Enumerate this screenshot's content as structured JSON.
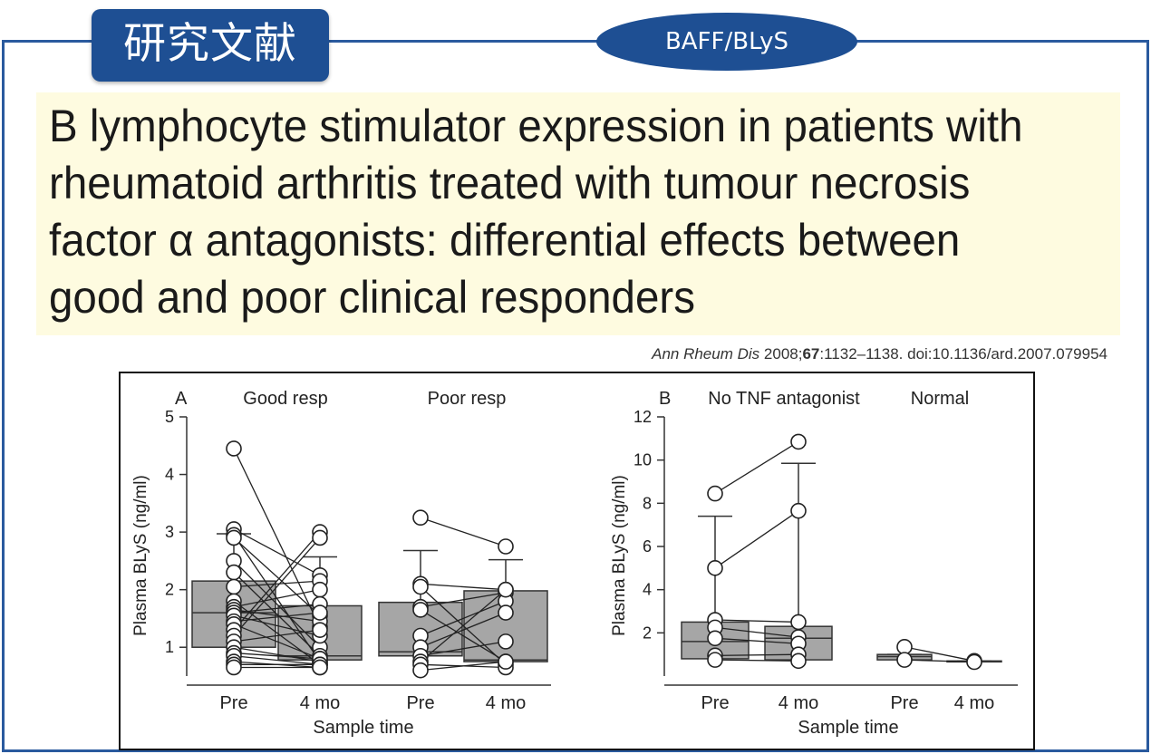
{
  "header": {
    "tag_label": "研究文献",
    "topic_pill": "BAFF/BLyS"
  },
  "article": {
    "title": "B lymphocyte stimulator expression in patients with rheumatoid arthritis treated with tumour necrosis factor α antagonists: differential effects between good and poor clinical responders",
    "citation_journal": "Ann Rheum Dis",
    "citation_year": "2008;",
    "citation_volume": "67",
    "citation_rest": ":1132–1138. doi:10.1136/ard.2007.079954"
  },
  "colors": {
    "accent": "#1e4f93",
    "title_bg": "#fefbe0",
    "box_fill": "#a6a6a6"
  },
  "chart_data": [
    {
      "type": "box",
      "panel_label": "A",
      "ylabel": "Plasma BLyS (ng/ml)",
      "xlabel": "Sample time",
      "ylim": [
        0.5,
        5
      ],
      "yticks": [
        1,
        2,
        3,
        4,
        5
      ],
      "groups": [
        {
          "name": "Good resp",
          "categories": [
            "Pre",
            "4 mo"
          ],
          "boxes": [
            {
              "whisker_low": 0.75,
              "q1": 1.0,
              "median": 1.6,
              "q3": 2.15,
              "whisker_high": 2.97
            },
            {
              "whisker_low": 0.75,
              "q1": 0.78,
              "median": 0.85,
              "q3": 1.72,
              "whisker_high": 2.57
            }
          ],
          "pairs": [
            [
              4.45,
              1.35
            ],
            [
              3.05,
              2.25
            ],
            [
              2.95,
              0.75
            ],
            [
              2.9,
              1.55
            ],
            [
              2.5,
              1.0
            ],
            [
              2.3,
              0.85
            ],
            [
              2.05,
              2.15
            ],
            [
              1.8,
              0.7
            ],
            [
              1.7,
              2.0
            ],
            [
              1.65,
              1.45
            ],
            [
              1.6,
              1.75
            ],
            [
              1.55,
              1.2
            ],
            [
              1.45,
              1.6
            ],
            [
              1.4,
              0.8
            ],
            [
              1.3,
              3.0
            ],
            [
              1.2,
              2.9
            ],
            [
              1.1,
              1.3
            ],
            [
              1.0,
              0.75
            ],
            [
              0.9,
              0.8
            ],
            [
              0.85,
              0.7
            ],
            [
              0.75,
              0.65
            ],
            [
              0.7,
              0.7
            ],
            [
              0.65,
              0.65
            ]
          ]
        },
        {
          "name": "Poor resp",
          "categories": [
            "Pre",
            "4 mo"
          ],
          "boxes": [
            {
              "whisker_low": 0.7,
              "q1": 0.85,
              "median": 0.92,
              "q3": 1.78,
              "whisker_high": 2.68
            },
            {
              "whisker_low": 0.7,
              "q1": 0.75,
              "median": 0.78,
              "q3": 1.98,
              "whisker_high": 2.52
            }
          ],
          "pairs": [
            [
              3.25,
              2.75
            ],
            [
              2.1,
              2.0
            ],
            [
              2.05,
              0.7
            ],
            [
              1.7,
              1.95
            ],
            [
              1.65,
              0.75
            ],
            [
              1.2,
              1.8
            ],
            [
              1.0,
              1.6
            ],
            [
              0.85,
              1.1
            ],
            [
              0.75,
              2.0
            ],
            [
              0.7,
              0.65
            ],
            [
              0.6,
              0.75
            ]
          ]
        }
      ]
    },
    {
      "type": "box",
      "panel_label": "B",
      "ylabel": "Plasma BLyS (ng/ml)",
      "xlabel": "Sample time",
      "ylim": [
        0,
        12
      ],
      "yticks": [
        2,
        4,
        6,
        8,
        10,
        12
      ],
      "groups": [
        {
          "name": "No TNF antagonist",
          "categories": [
            "Pre",
            "4 mo"
          ],
          "boxes": [
            {
              "whisker_low": 0.7,
              "q1": 0.8,
              "median": 1.6,
              "q3": 2.5,
              "whisker_high": 7.4
            },
            {
              "whisker_low": 0.7,
              "q1": 0.75,
              "median": 1.75,
              "q3": 2.3,
              "whisker_high": 9.85
            }
          ],
          "pairs": [
            [
              8.45,
              10.85
            ],
            [
              5.0,
              7.65
            ],
            [
              2.6,
              2.5
            ],
            [
              2.25,
              1.8
            ],
            [
              1.75,
              1.5
            ],
            [
              0.95,
              1.0
            ],
            [
              0.75,
              0.7
            ]
          ]
        },
        {
          "name": "Normal",
          "categories": [
            "Pre",
            "4 mo"
          ],
          "boxes": [
            {
              "whisker_low": 0.7,
              "q1": 0.75,
              "median": 0.9,
              "q3": 1.0,
              "whisker_high": 1.0
            },
            {
              "whisker_low": 0.65,
              "q1": 0.66,
              "median": 0.68,
              "q3": 0.7,
              "whisker_high": 0.7
            }
          ],
          "pairs": [
            [
              1.35,
              0.7
            ],
            [
              0.75,
              0.65
            ]
          ]
        }
      ]
    }
  ]
}
